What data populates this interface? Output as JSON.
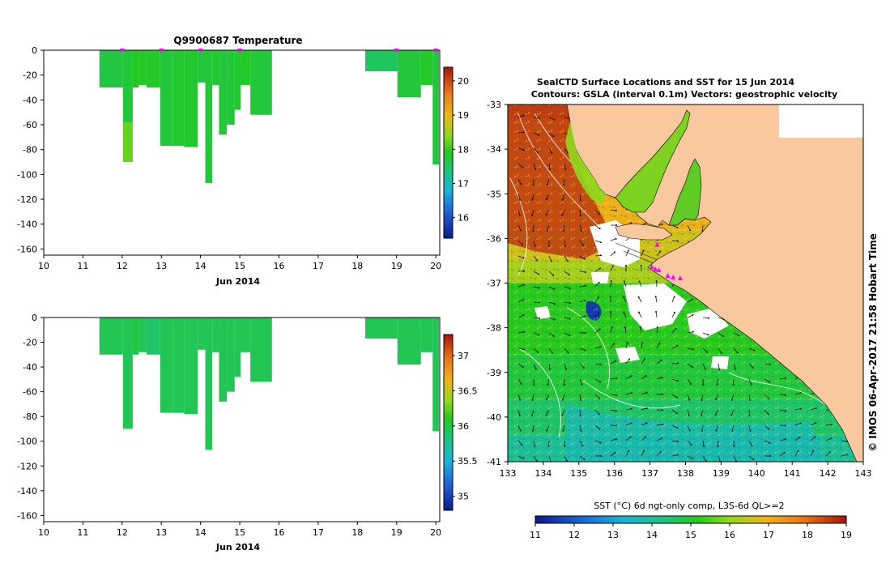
{
  "figure": {
    "top_title": "Q9900687  Temperature",
    "map_title_line1": "SealCTD Surface Locations and SST for 15 Jun 2014",
    "map_title_line2": "Contours: GSLA (interval 0.1m) Vectors: geostrophic velocity",
    "credit": "©  IMOS 06-Apr-2017 21:58 Hobart Time",
    "colors": {
      "land": "#f9c89e",
      "no_data": "#ffffff",
      "marker": "#ff00ff"
    }
  },
  "chart_data": [
    {
      "type": "heatmap",
      "variant": "profile-section",
      "name": "temperature-section",
      "title": "Q9900687  Temperature",
      "xlabel": "Jun 2014",
      "ylabel": "",
      "xticks": [
        10,
        11,
        12,
        13,
        14,
        15,
        16,
        17,
        18,
        19,
        20
      ],
      "xlim": [
        10,
        20.1
      ],
      "yticks": [
        0,
        -20,
        -40,
        -60,
        -80,
        -100,
        -120,
        -140,
        -160
      ],
      "ylim": [
        -165,
        0
      ],
      "marker_times": [
        12,
        13,
        14,
        15,
        19,
        20
      ],
      "colorbar": {
        "ticks": [
          16,
          17,
          18,
          19,
          20
        ],
        "range": [
          15.4,
          20.4
        ],
        "orientation": "vertical"
      },
      "profiles": [
        {
          "x0": 11.42,
          "x1": 12.02,
          "depth": -30,
          "value": 17.8
        },
        {
          "x0": 12.02,
          "x1": 12.27,
          "depth": -90,
          "value": 17.85,
          "deep_value": 18.3,
          "split_depth": -58
        },
        {
          "x0": 12.27,
          "x1": 12.42,
          "depth": -30,
          "value": 18.0
        },
        {
          "x0": 12.42,
          "x1": 12.62,
          "depth": -28,
          "value": 17.95
        },
        {
          "x0": 12.62,
          "x1": 12.97,
          "depth": -30,
          "value": 17.95
        },
        {
          "x0": 12.97,
          "x1": 13.3,
          "depth": -77,
          "value": 17.85
        },
        {
          "x0": 13.3,
          "x1": 13.58,
          "depth": -77,
          "value": 17.9
        },
        {
          "x0": 13.58,
          "x1": 13.93,
          "depth": -78,
          "value": 17.9
        },
        {
          "x0": 13.93,
          "x1": 14.12,
          "depth": -26,
          "value": 17.85
        },
        {
          "x0": 14.12,
          "x1": 14.3,
          "depth": -107,
          "value": 17.85
        },
        {
          "x0": 14.3,
          "x1": 14.47,
          "depth": -28,
          "value": 17.9
        },
        {
          "x0": 14.47,
          "x1": 14.67,
          "depth": -68,
          "value": 17.85
        },
        {
          "x0": 14.67,
          "x1": 14.87,
          "depth": -60,
          "value": 17.85
        },
        {
          "x0": 14.87,
          "x1": 15.02,
          "depth": -48,
          "value": 17.9
        },
        {
          "x0": 15.02,
          "x1": 15.27,
          "depth": -28,
          "value": 17.95
        },
        {
          "x0": 15.27,
          "x1": 15.82,
          "depth": -52,
          "value": 17.85
        },
        {
          "x0": 18.2,
          "x1": 19.02,
          "depth": -17,
          "value": 17.65
        },
        {
          "x0": 19.02,
          "x1": 19.62,
          "depth": -38,
          "value": 17.85
        },
        {
          "x0": 19.62,
          "x1": 19.92,
          "depth": -28,
          "value": 17.95
        },
        {
          "x0": 19.92,
          "x1": 20.08,
          "depth": -92,
          "value": 17.85
        }
      ]
    },
    {
      "type": "heatmap",
      "variant": "profile-section",
      "name": "salinity-section",
      "title": "",
      "xlabel": "Jun 2014",
      "ylabel": "",
      "xticks": [
        10,
        11,
        12,
        13,
        14,
        15,
        16,
        17,
        18,
        19,
        20
      ],
      "xlim": [
        10,
        20.1
      ],
      "yticks": [
        0,
        -20,
        -40,
        -60,
        -80,
        -100,
        -120,
        -140,
        -160
      ],
      "ylim": [
        -165,
        0
      ],
      "colorbar": {
        "ticks": [
          35,
          35.5,
          36,
          36.5,
          37
        ],
        "range": [
          34.8,
          37.3
        ],
        "orientation": "vertical"
      },
      "profiles": [
        {
          "x0": 11.42,
          "x1": 12.02,
          "depth": -30,
          "value": 35.95
        },
        {
          "x0": 12.02,
          "x1": 12.27,
          "depth": -90,
          "value": 35.95
        },
        {
          "x0": 12.27,
          "x1": 12.42,
          "depth": -30,
          "value": 36.0
        },
        {
          "x0": 12.42,
          "x1": 12.62,
          "depth": -28,
          "value": 35.95
        },
        {
          "x0": 12.62,
          "x1": 12.97,
          "depth": -30,
          "value": 35.9
        },
        {
          "x0": 12.97,
          "x1": 13.3,
          "depth": -77,
          "value": 35.95
        },
        {
          "x0": 13.3,
          "x1": 13.58,
          "depth": -77,
          "value": 35.95
        },
        {
          "x0": 13.58,
          "x1": 13.93,
          "depth": -78,
          "value": 35.95
        },
        {
          "x0": 13.93,
          "x1": 14.12,
          "depth": -26,
          "value": 35.95
        },
        {
          "x0": 14.12,
          "x1": 14.3,
          "depth": -107,
          "value": 35.95
        },
        {
          "x0": 14.3,
          "x1": 14.47,
          "depth": -28,
          "value": 35.95
        },
        {
          "x0": 14.47,
          "x1": 14.67,
          "depth": -68,
          "value": 35.95
        },
        {
          "x0": 14.67,
          "x1": 14.87,
          "depth": -60,
          "value": 35.95
        },
        {
          "x0": 14.87,
          "x1": 15.02,
          "depth": -48,
          "value": 35.95
        },
        {
          "x0": 15.02,
          "x1": 15.27,
          "depth": -28,
          "value": 35.95
        },
        {
          "x0": 15.27,
          "x1": 15.82,
          "depth": -52,
          "value": 35.95
        },
        {
          "x0": 18.2,
          "x1": 19.02,
          "depth": -17,
          "value": 35.95
        },
        {
          "x0": 19.02,
          "x1": 19.62,
          "depth": -38,
          "value": 35.95
        },
        {
          "x0": 19.62,
          "x1": 19.92,
          "depth": -28,
          "value": 35.95
        },
        {
          "x0": 19.92,
          "x1": 20.08,
          "depth": -92,
          "value": 35.95
        }
      ]
    },
    {
      "type": "heatmap",
      "variant": "map",
      "name": "sst-map",
      "title": "SealCTD Surface Locations and SST for 15 Jun 2014",
      "subtitle": "Contours: GSLA (interval 0.1m) Vectors: geostrophic velocity",
      "xlabel": "",
      "ylabel": "",
      "xticks": [
        133,
        134,
        135,
        136,
        137,
        138,
        139,
        140,
        141,
        142,
        143
      ],
      "xlim": [
        133,
        143
      ],
      "yticks": [
        -33,
        -34,
        -35,
        -36,
        -37,
        -38,
        -39,
        -40,
        -41
      ],
      "ylim": [
        -41,
        -33
      ],
      "colorbar": {
        "label": "SST (°C) 6d ngt-only comp, L3S-6d QL>=2",
        "ticks": [
          11,
          12,
          13,
          14,
          15,
          16,
          17,
          18,
          19
        ],
        "range": [
          11,
          19
        ],
        "orientation": "horizontal"
      },
      "sst_field": {
        "lat_bands": [
          -33.3,
          -34.5,
          -35.8,
          -36.5,
          -37.0,
          -37.6,
          -38.6,
          -39.6,
          -40.4,
          -41.0
        ],
        "sst_by_band": [
          18.3,
          17.4,
          17.0,
          16.6,
          16.2,
          15.2,
          15.2,
          14.9,
          14.5,
          14.0
        ]
      },
      "station_markers": [
        {
          "lon": 137.2,
          "lat": -36.15
        },
        {
          "lon": 137.05,
          "lat": -36.65
        },
        {
          "lon": 137.15,
          "lat": -36.7
        },
        {
          "lon": 137.25,
          "lat": -36.72
        },
        {
          "lon": 137.5,
          "lat": -36.85
        },
        {
          "lon": 137.65,
          "lat": -36.88
        },
        {
          "lon": 137.85,
          "lat": -36.9
        }
      ]
    }
  ]
}
